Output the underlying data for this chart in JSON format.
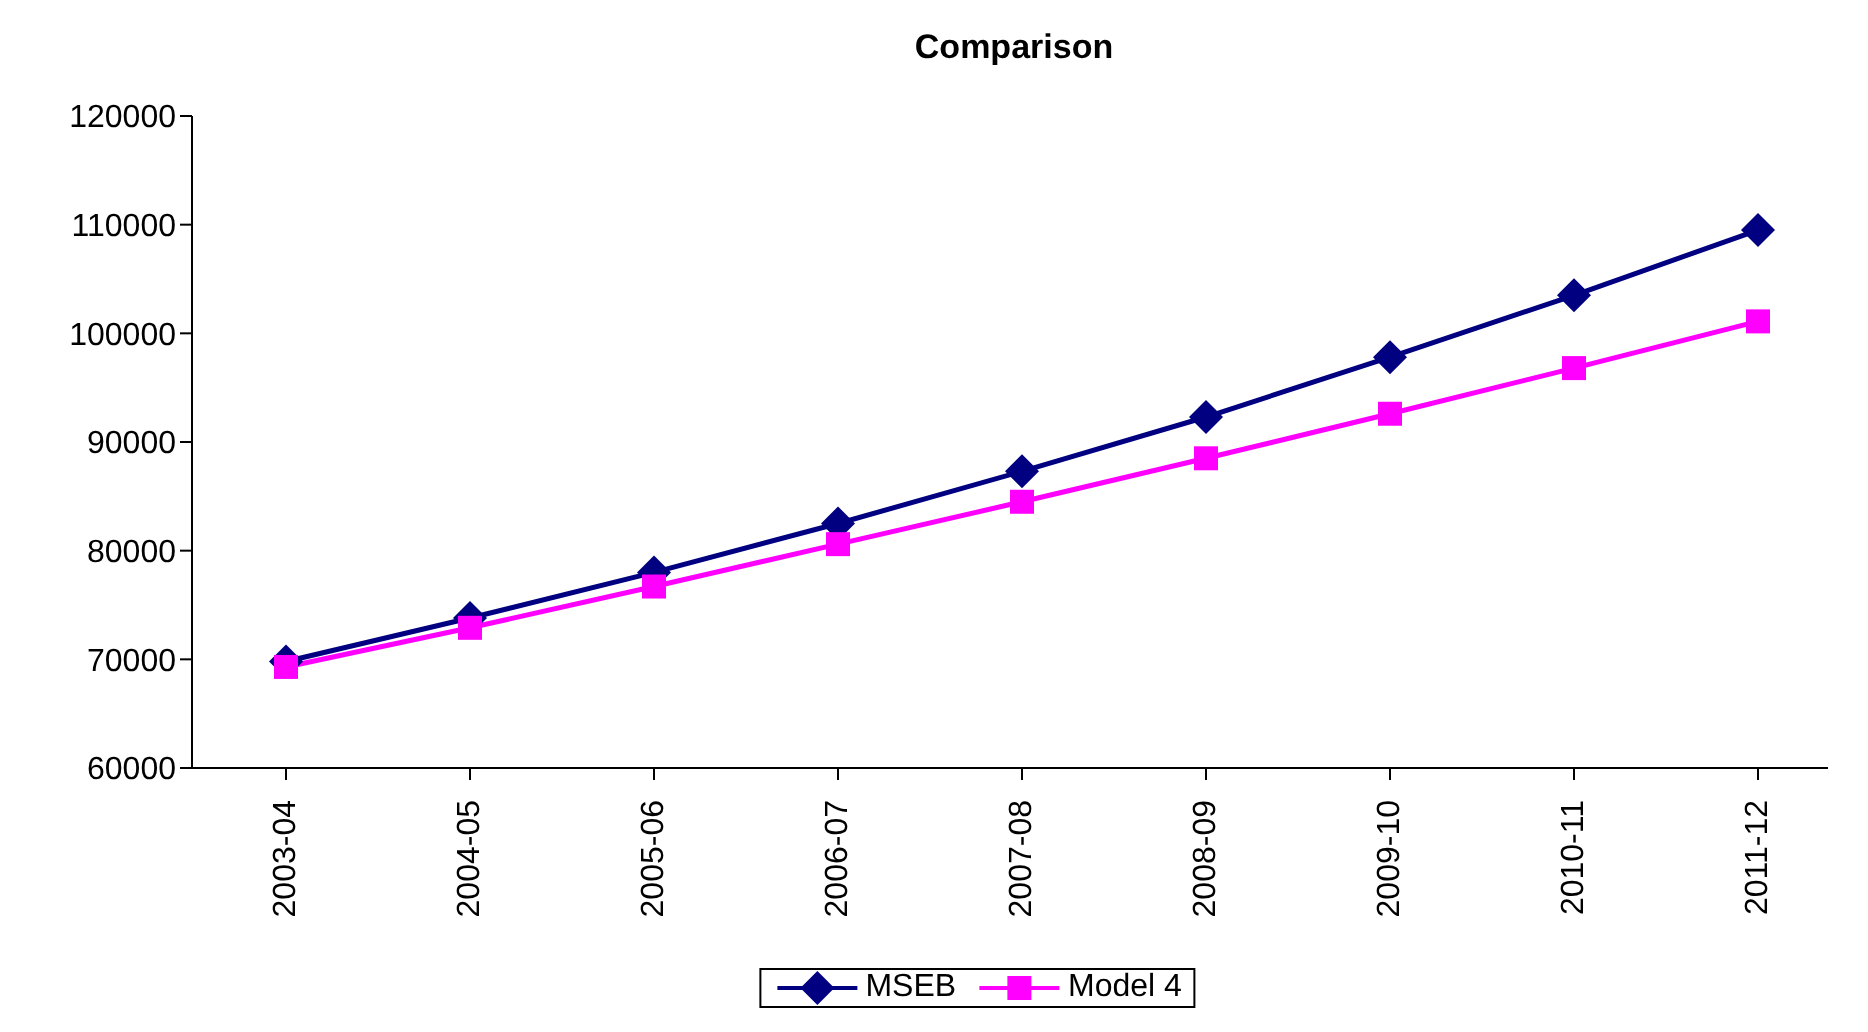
{
  "chart_data": {
    "type": "line",
    "title": "Comparison",
    "categories": [
      "2003-04",
      "2004-05",
      "2005-06",
      "2006-07",
      "2007-08",
      "2008-09",
      "2009-10",
      "2010-11",
      "2011-12"
    ],
    "series": [
      {
        "name": "MSEB",
        "color": "#000080",
        "marker": "diamond",
        "values": [
          69800,
          73800,
          78000,
          82500,
          87300,
          92300,
          97800,
          103500,
          109500
        ]
      },
      {
        "name": "Model 4",
        "color": "#ff00ff",
        "marker": "square",
        "values": [
          69300,
          72900,
          76700,
          80600,
          84500,
          88500,
          92600,
          96800,
          101100
        ]
      }
    ],
    "ylim": [
      60000,
      120000
    ],
    "yticks": [
      60000,
      70000,
      80000,
      90000,
      100000,
      110000,
      120000
    ],
    "grid": false,
    "legend": "bottom",
    "line_style": "solid"
  }
}
